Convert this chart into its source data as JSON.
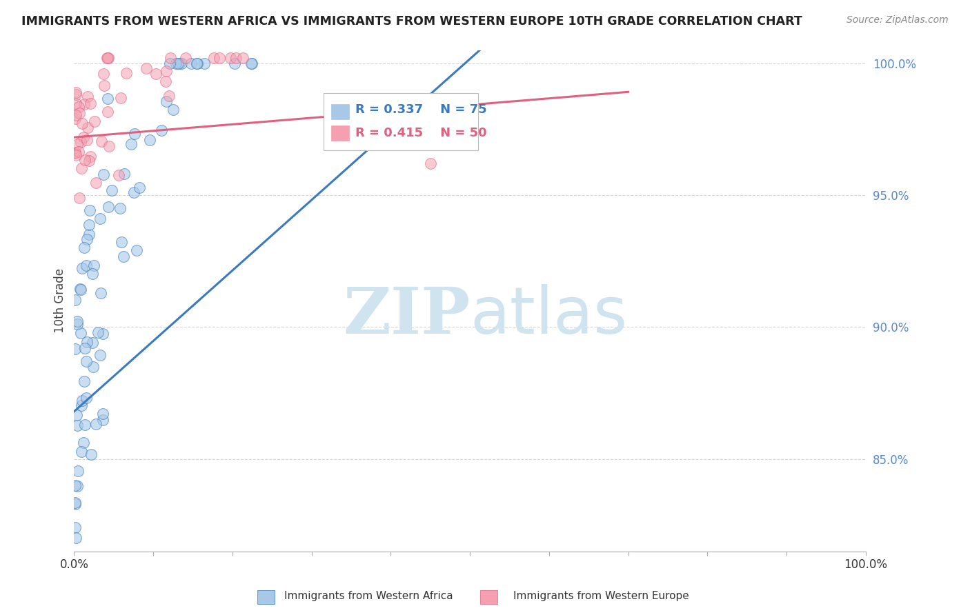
{
  "title": "IMMIGRANTS FROM WESTERN AFRICA VS IMMIGRANTS FROM WESTERN EUROPE 10TH GRADE CORRELATION CHART",
  "source": "Source: ZipAtlas.com",
  "ylabel": "10th Grade",
  "legend_label1": "Immigrants from Western Africa",
  "legend_label2": "Immigrants from Western Europe",
  "r1": 0.337,
  "n1": 75,
  "r2": 0.415,
  "n2": 50,
  "color1": "#a8c8e8",
  "color2": "#f4a0b0",
  "trendline1_color": "#3a7abf",
  "trendline2_color": "#e06080",
  "watermark_zip": "ZIP",
  "watermark_atlas": "atlas",
  "watermark_color": "#d0e4f0",
  "background": "#ffffff",
  "xlim": [
    0.0,
    1.0
  ],
  "ylim": [
    0.815,
    1.005
  ],
  "yticks": [
    0.85,
    0.9,
    0.95,
    1.0
  ],
  "ytick_labels": [
    "85.0%",
    "90.0%",
    "95.0%",
    "100.0%"
  ],
  "tick_color": "#5588cc",
  "seed1": 12,
  "seed2": 99
}
